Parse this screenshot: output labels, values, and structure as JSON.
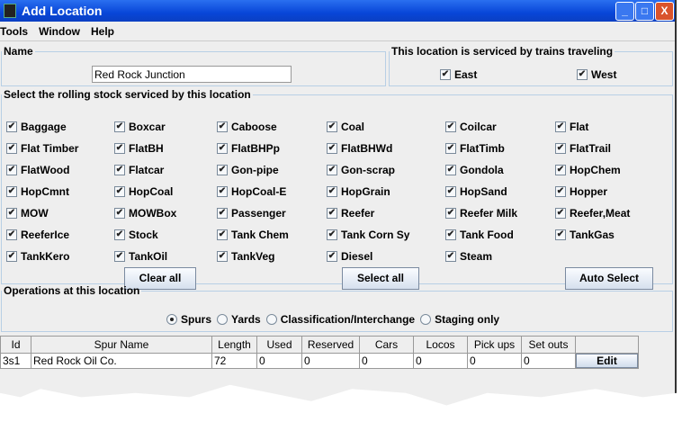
{
  "window": {
    "title": "Add Location",
    "buttons": [
      "_",
      "□",
      "X"
    ]
  },
  "menu": [
    "Tools",
    "Window",
    "Help"
  ],
  "name_panel": {
    "legend": "Name",
    "value": "Red Rock Junction"
  },
  "direction_panel": {
    "legend": "This location is serviced by trains traveling",
    "options": [
      {
        "label": "East",
        "checked": true
      },
      {
        "label": "West",
        "checked": true
      }
    ]
  },
  "rolling_stock": {
    "legend": "Select the rolling stock serviced by this location",
    "items": [
      "Baggage",
      "Boxcar",
      "Caboose",
      "Coal",
      "Coilcar",
      "Flat",
      "Flat Timber",
      "FlatBH",
      "FlatBHPp",
      "FlatBHWd",
      "FlatTimb",
      "FlatTrail",
      "FlatWood",
      "Flatcar",
      "Gon-pipe",
      "Gon-scrap",
      "Gondola",
      "HopChem",
      "HopCmnt",
      "HopCoal",
      "HopCoal-E",
      "HopGrain",
      "HopSand",
      "Hopper",
      "MOW",
      "MOWBox",
      "Passenger",
      "Reefer",
      "Reefer Milk",
      "Reefer,Meat",
      "ReeferIce",
      "Stock",
      "Tank Chem",
      "Tank Corn Sy",
      "Tank Food",
      "TankGas",
      "TankKero",
      "TankOil",
      "TankVeg",
      "Diesel",
      "Steam"
    ],
    "clear_all": "Clear all",
    "select_all": "Select all",
    "auto_select": "Auto Select"
  },
  "operations": {
    "legend": "Operations at this location",
    "options": [
      {
        "label": "Spurs",
        "selected": true
      },
      {
        "label": "Yards",
        "selected": false
      },
      {
        "label": "Classification/Interchange",
        "selected": false
      },
      {
        "label": "Staging only",
        "selected": false
      }
    ]
  },
  "table": {
    "headers": [
      "Id",
      "Spur Name",
      "Length",
      "Used",
      "Reserved",
      "Cars",
      "Locos",
      "Pick ups",
      "Set outs",
      ""
    ],
    "rows": [
      [
        "3s1",
        "Red Rock Oil Co.",
        "72",
        "0",
        "0",
        "0",
        "0",
        "0",
        "0"
      ]
    ],
    "edit_label": "Edit"
  }
}
